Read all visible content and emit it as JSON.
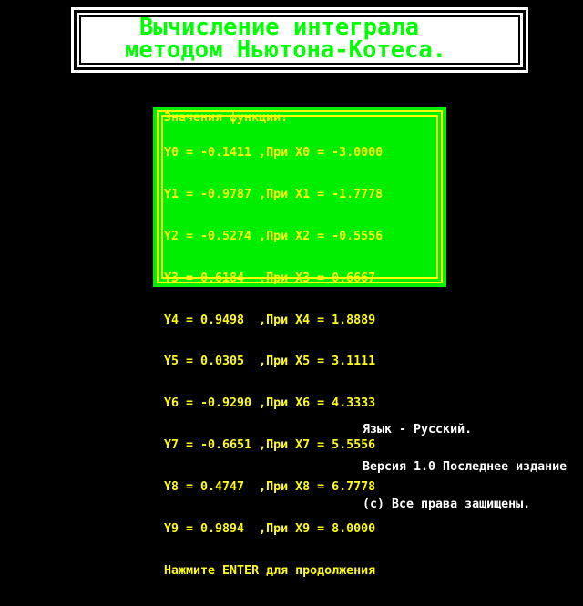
{
  "screen": {
    "bg": "#000000"
  },
  "title_box": {
    "bg": "#FFFFFF",
    "border_color": "#000000",
    "text_color": "#00FF00",
    "line1": "Вычисление интеграла",
    "line2": "методом Ньютона-Котеса."
  },
  "panel": {
    "bg": "#00EE00",
    "border_color": "#FFFF00",
    "text_color": "#FFFF00",
    "header": "Значения функции:",
    "rows": [
      "Y0 = -0.1411 ,При X0 = -3.0000",
      "Y1 = -0.9787 ,При X1 = -1.7778",
      "Y2 = -0.5274 ,При X2 = -0.5556",
      "Y3 = 0.6184  ,При X3 = 0.6667",
      "Y4 = 0.9498  ,При X4 = 1.8889",
      "Y5 = 0.0305  ,При X5 = 3.1111",
      "Y6 = -0.9290 ,При X6 = 4.3333",
      "Y7 = -0.6651 ,При X7 = 5.5556",
      "Y8 = 0.4747  ,При X8 = 6.7778",
      "Y9 = 0.9894  ,При X9 = 8.0000"
    ],
    "prompt": "Нажмите ENTER для продолжения",
    "values": {
      "y": [
        -0.1411,
        -0.9787,
        -0.5274,
        0.6184,
        0.9498,
        0.0305,
        -0.929,
        -0.6651,
        0.4747,
        0.9894
      ],
      "x": [
        -3.0,
        -1.7778,
        -0.5556,
        0.6667,
        1.8889,
        3.1111,
        4.3333,
        5.5556,
        6.7778,
        8.0
      ]
    }
  },
  "footer": {
    "text_color": "#FFFFFF",
    "language_line": "Язык - Русский.",
    "version_line": "Версия 1.0 Последнее издание",
    "copyright_line": "(с) Все права защищены."
  }
}
